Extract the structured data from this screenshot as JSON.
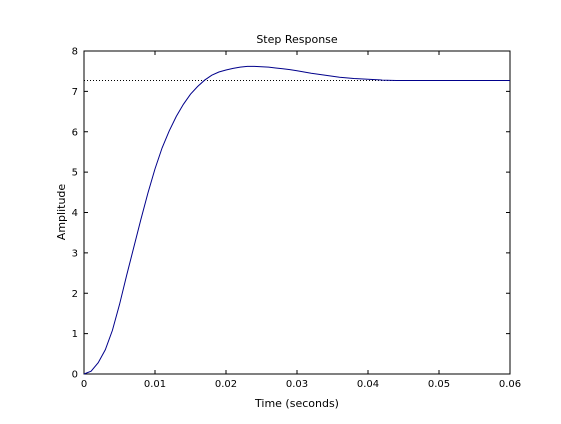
{
  "chart_data": {
    "type": "line",
    "title": "Step Response",
    "xlabel": "Time (seconds)",
    "ylabel": "Amplitude",
    "xlim": [
      0,
      0.06
    ],
    "ylim": [
      0,
      8
    ],
    "xticks": [
      0,
      0.01,
      0.02,
      0.03,
      0.04,
      0.05,
      0.06
    ],
    "xtick_labels": [
      "0",
      "0.01",
      "0.02",
      "0.03",
      "0.04",
      "0.05",
      "0.06"
    ],
    "yticks": [
      0,
      1,
      2,
      3,
      4,
      5,
      6,
      7,
      8
    ],
    "ytick_labels": [
      "0",
      "1",
      "2",
      "3",
      "4",
      "5",
      "6",
      "7",
      "8"
    ],
    "grid": false,
    "reference_lines": [
      {
        "style": "dotted",
        "y": 7.27,
        "x_range": [
          0,
          0.06
        ]
      }
    ],
    "series": [
      {
        "color": "#00008b",
        "x": [
          0,
          0.001,
          0.002,
          0.003,
          0.004,
          0.005,
          0.006,
          0.007,
          0.008,
          0.009,
          0.01,
          0.011,
          0.012,
          0.013,
          0.014,
          0.015,
          0.016,
          0.017,
          0.018,
          0.019,
          0.02,
          0.021,
          0.022,
          0.023,
          0.024,
          0.025,
          0.026,
          0.027,
          0.028,
          0.029,
          0.03,
          0.032,
          0.034,
          0.036,
          0.038,
          0.04,
          0.042,
          0.044,
          0.046,
          0.048,
          0.05,
          0.055,
          0.06
        ],
        "y": [
          0,
          0.07,
          0.28,
          0.6,
          1.08,
          1.72,
          2.44,
          3.13,
          3.82,
          4.48,
          5.08,
          5.6,
          6.02,
          6.38,
          6.68,
          6.93,
          7.12,
          7.28,
          7.4,
          7.48,
          7.53,
          7.57,
          7.6,
          7.62,
          7.62,
          7.61,
          7.6,
          7.58,
          7.56,
          7.54,
          7.51,
          7.45,
          7.4,
          7.35,
          7.32,
          7.3,
          7.28,
          7.27,
          7.27,
          7.27,
          7.27,
          7.27,
          7.27
        ]
      }
    ]
  }
}
